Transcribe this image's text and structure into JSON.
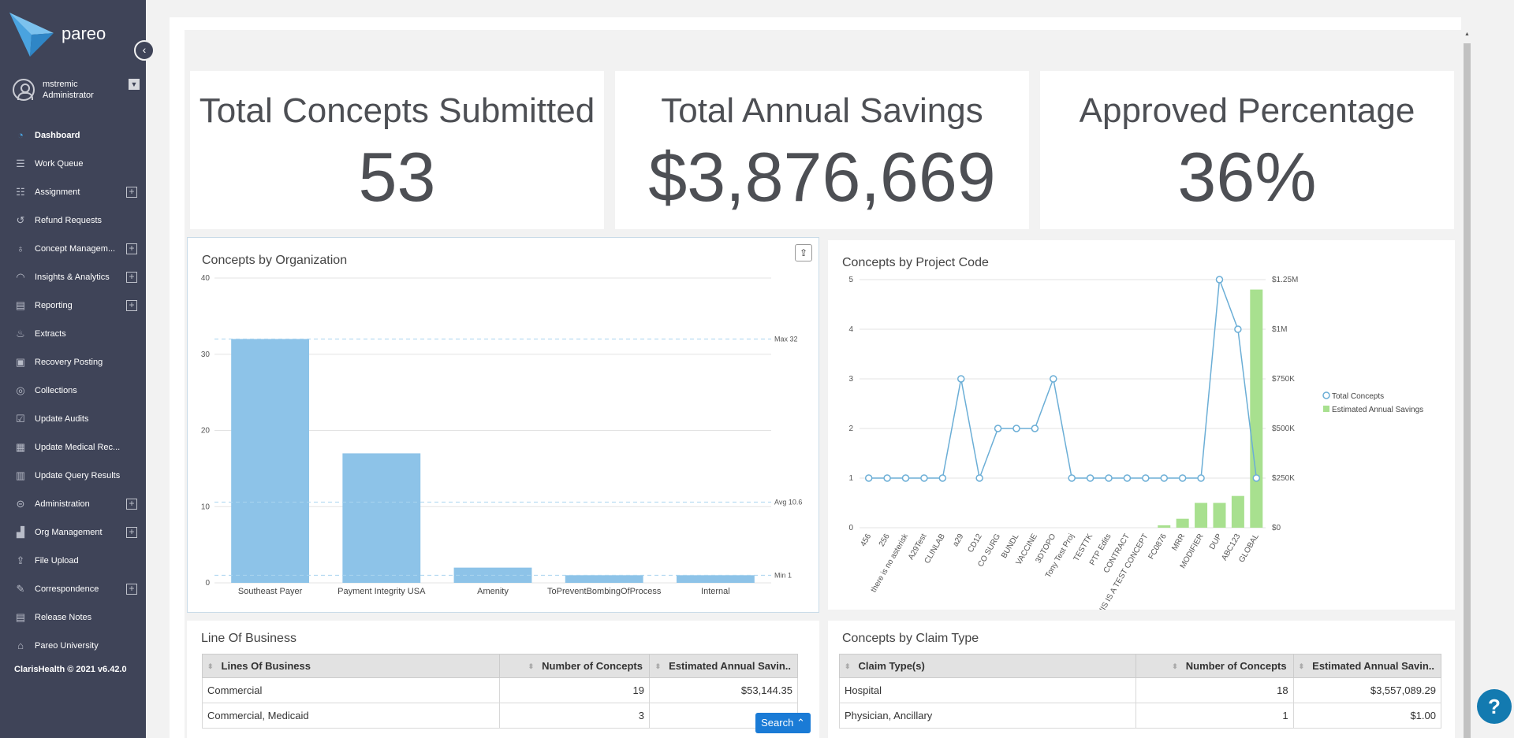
{
  "brand": {
    "name": "pareo"
  },
  "user": {
    "name": "mstremic",
    "role": "Administrator"
  },
  "nav": [
    {
      "label": "Dashboard",
      "icon": "gauge-icon",
      "glyph": "◔",
      "plus": false,
      "active": true
    },
    {
      "label": "Work Queue",
      "icon": "list-icon",
      "glyph": "☰",
      "plus": false
    },
    {
      "label": "Assignment",
      "icon": "checklist-icon",
      "glyph": "☷",
      "plus": true
    },
    {
      "label": "Refund Requests",
      "icon": "refund-icon",
      "glyph": "↺",
      "plus": false
    },
    {
      "label": "Concept Managem...",
      "icon": "lightbulb-icon",
      "glyph": "♁",
      "plus": true
    },
    {
      "label": "Insights & Analytics",
      "icon": "analytics-icon",
      "glyph": "◠",
      "plus": true
    },
    {
      "label": "Reporting",
      "icon": "report-icon",
      "glyph": "▤",
      "plus": true
    },
    {
      "label": "Extracts",
      "icon": "extract-icon",
      "glyph": "♨",
      "plus": false
    },
    {
      "label": "Recovery Posting",
      "icon": "money-icon",
      "glyph": "▣",
      "plus": false
    },
    {
      "label": "Collections",
      "icon": "collections-icon",
      "glyph": "◎",
      "plus": false
    },
    {
      "label": "Update Audits",
      "icon": "clipboard-check-icon",
      "glyph": "☑",
      "plus": false
    },
    {
      "label": "Update Medical Rec...",
      "icon": "clipboard-icon",
      "glyph": "▦",
      "plus": false
    },
    {
      "label": "Update Query Results",
      "icon": "query-icon",
      "glyph": "▥",
      "plus": false
    },
    {
      "label": "Administration",
      "icon": "lock-icon",
      "glyph": "⊝",
      "plus": true
    },
    {
      "label": "Org Management",
      "icon": "org-icon",
      "glyph": "▟",
      "plus": true
    },
    {
      "label": "File Upload",
      "icon": "upload-icon",
      "glyph": "⇪",
      "plus": false
    },
    {
      "label": "Correspondence",
      "icon": "pen-icon",
      "glyph": "✎",
      "plus": true
    },
    {
      "label": "Release Notes",
      "icon": "notes-icon",
      "glyph": "▤",
      "plus": false
    },
    {
      "label": "Pareo University",
      "icon": "graduation-icon",
      "glyph": "⌂",
      "plus": false
    }
  ],
  "footer": "ClarisHealth © 2021   v6.42.0",
  "kpis": [
    {
      "title": "Total Concepts Submitted",
      "value": "53"
    },
    {
      "title": "Total Annual Savings",
      "value": "$3,876,669"
    },
    {
      "title": "Approved Percentage",
      "value": "36%"
    }
  ],
  "chart_data": [
    {
      "type": "bar",
      "title": "Concepts by Organization",
      "categories": [
        "Southeast Payer",
        "Payment Integrity USA",
        "Amenity",
        "ToPreventBombingOfProcess",
        "Internal"
      ],
      "values": [
        32,
        17,
        2,
        1,
        1
      ],
      "ylim": [
        0,
        40
      ],
      "yticks": [
        0,
        10,
        20,
        30,
        40
      ],
      "plot_lines": [
        {
          "label": "Max 32",
          "value": 32
        },
        {
          "label": "Avg 10.6",
          "value": 10.6
        },
        {
          "label": "Min 1",
          "value": 1
        }
      ],
      "color": "#8dc3e8"
    },
    {
      "type": "line",
      "title": "Concepts by Project Code",
      "categories": [
        "456",
        "256",
        "there is no asterisk",
        "A29Test",
        "CLINLAB",
        "a29",
        "CD12",
        "CO SURG",
        "BUNDL",
        "VACCINE",
        "3DTOPO",
        "Tony Test Proj",
        "TESTTK",
        "PTP Edits",
        "CONTRACT",
        "THIS IS A TEST CONCEPT",
        "FC0876",
        "MRR",
        "MODIFIER",
        "DUP",
        "ABC123",
        "GLOBAL"
      ],
      "series": [
        {
          "name": "Total Concepts",
          "values": [
            1,
            1,
            1,
            1,
            1,
            3,
            1,
            2,
            2,
            2,
            3,
            1,
            1,
            1,
            1,
            1,
            1,
            1,
            1,
            5,
            4,
            1
          ],
          "color": "#6baed6"
        },
        {
          "name": "Estimated Annual Savings",
          "values": [
            0,
            0,
            0,
            0,
            0,
            0,
            0,
            0,
            0,
            0,
            0,
            0,
            0,
            0,
            0,
            0,
            12000,
            45000,
            125000,
            125000,
            160000,
            1200000
          ],
          "color": "#a8e08f"
        }
      ],
      "ylim": [
        0,
        5
      ],
      "yticks": [
        "0",
        "1",
        "2",
        "3",
        "4",
        "5"
      ],
      "y2ticks": [
        "$0",
        "$250K",
        "$500K",
        "$750K",
        "$1M",
        "$1.25M"
      ],
      "y2lim": [
        0,
        1250000
      ]
    }
  ],
  "lob": {
    "title": "Line Of Business",
    "headers": [
      "Lines Of Business",
      "Number of Concepts",
      "Estimated Annual Savin.."
    ],
    "rows": [
      [
        "Commercial",
        "19",
        "$53,144.35"
      ],
      [
        "Commercial, Medicaid",
        "3",
        ""
      ]
    ]
  },
  "claims": {
    "title": "Concepts by Claim Type",
    "headers": [
      "Claim Type(s)",
      "Number of Concepts",
      "Estimated Annual Savin.."
    ],
    "rows": [
      [
        "Hospital",
        "18",
        "$3,557,089.29"
      ],
      [
        "Physician, Ancillary",
        "1",
        "$1.00"
      ]
    ]
  },
  "search_button": "Search",
  "help": "?"
}
